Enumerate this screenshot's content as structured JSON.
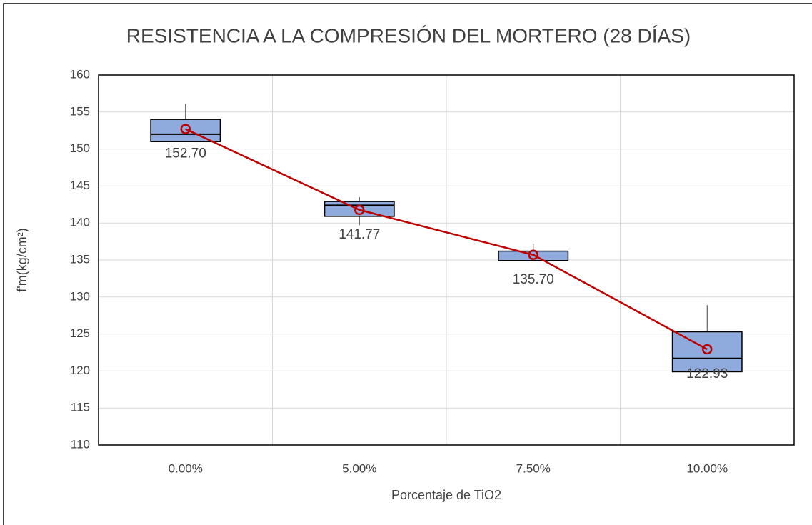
{
  "chart_data": {
    "type": "box",
    "title": "RESISTENCIA A LA COMPRESIÓN DEL MORTERO (28 DÍAS)",
    "x_label": "Porcentaje de TiO2",
    "y_label": "f'm(kg/cm²)",
    "categories": [
      "0.00%",
      "5.00%",
      "7.50%",
      "10.00%"
    ],
    "boxes": {
      "color": "#8faadc",
      "min": [
        151.0,
        139.7,
        134.9,
        119.5
      ],
      "q1": [
        151.0,
        140.9,
        134.9,
        119.9
      ],
      "median": [
        152.0,
        142.4,
        134.9,
        121.7
      ],
      "q3": [
        154.0,
        142.9,
        136.2,
        125.3
      ],
      "max": [
        156.1,
        143.5,
        137.2,
        128.9
      ]
    },
    "means": {
      "color": "#c00000",
      "values": [
        152.7,
        141.77,
        135.7,
        122.93
      ],
      "value_labels": [
        "152.70",
        "141.77",
        "135.70",
        "122.93"
      ]
    },
    "ylim": [
      110,
      160
    ],
    "yticks": [
      110,
      115,
      120,
      125,
      130,
      135,
      140,
      145,
      150,
      155,
      160
    ],
    "grid": true
  }
}
